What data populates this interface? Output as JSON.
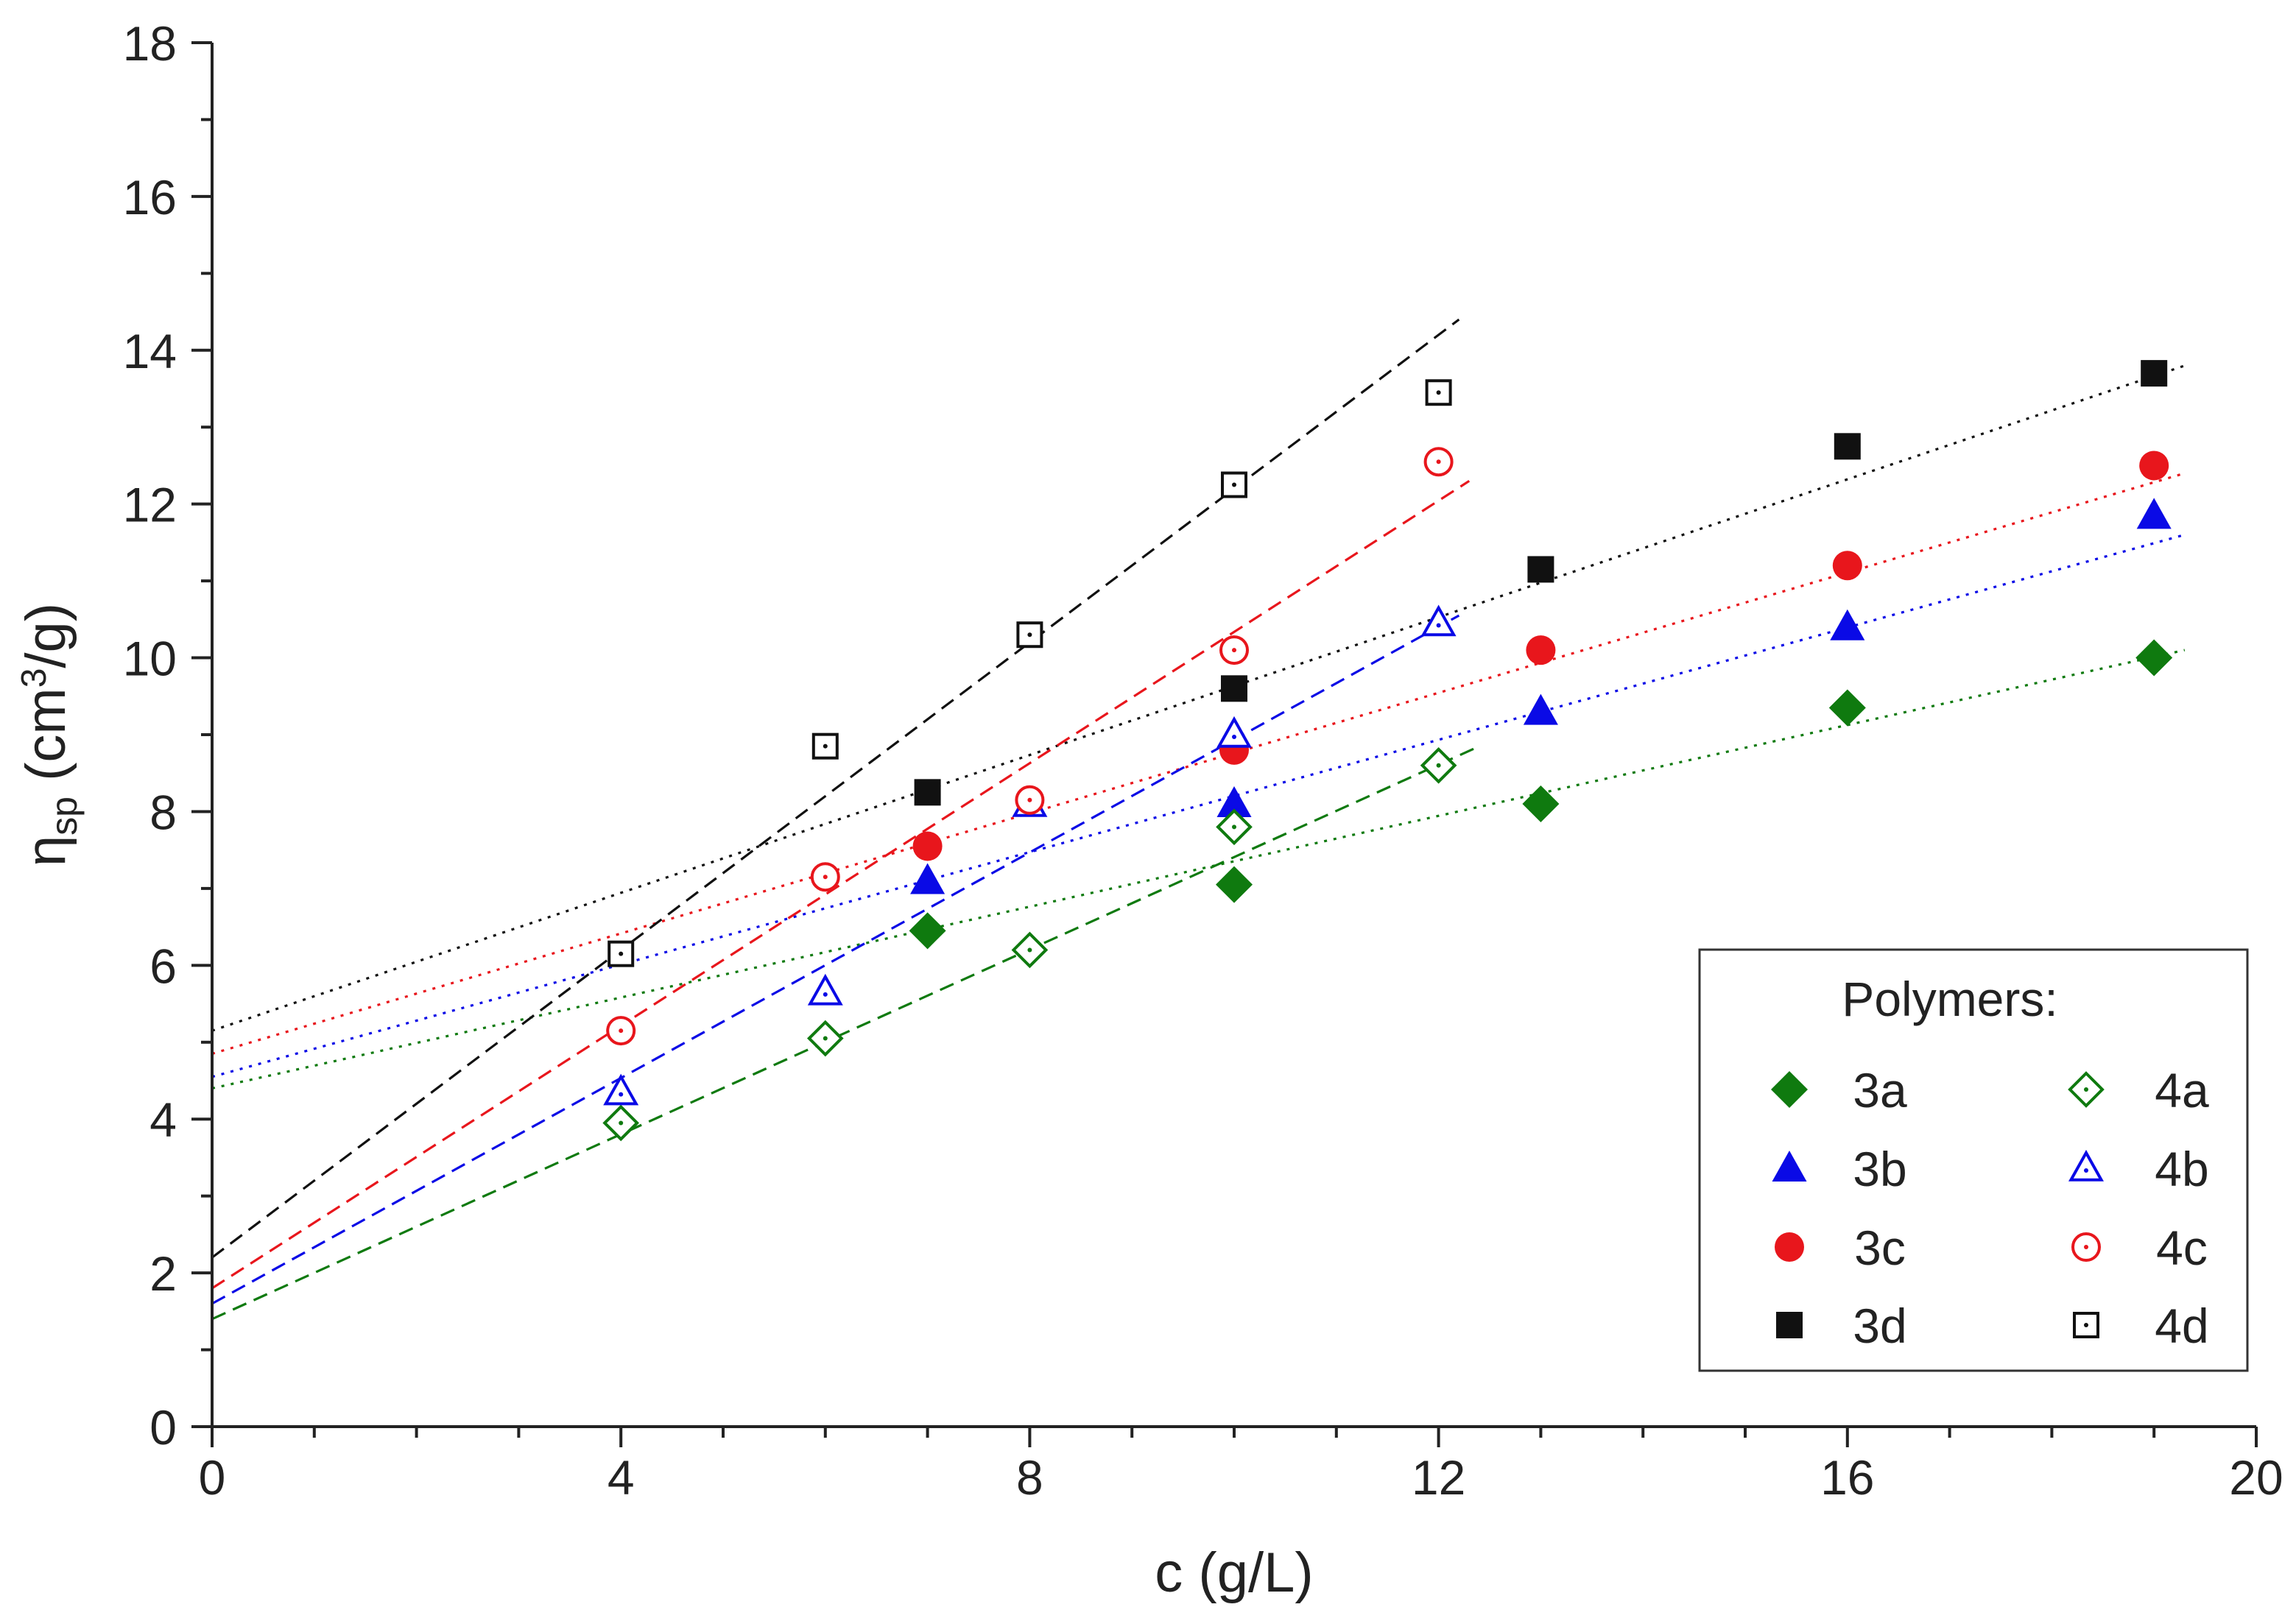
{
  "chart_data": {
    "type": "scatter",
    "x_axis": {
      "label": "c (g/L)",
      "min": 0,
      "max": 20,
      "ticks": [
        0,
        4,
        8,
        12,
        16,
        20
      ],
      "tick_labels": [
        "0",
        "4",
        "8",
        "12",
        "16",
        "20"
      ]
    },
    "y_axis": {
      "label_main": "η",
      "label_sub": "sp",
      "label_open": " (cm",
      "label_sup": "3",
      "label_close": "/g)",
      "min": 0,
      "max": 18,
      "ticks": [
        0,
        2,
        4,
        6,
        8,
        10,
        12,
        14,
        16,
        18
      ],
      "tick_labels": [
        "0",
        "2",
        "4",
        "6",
        "8",
        "10",
        "12",
        "14",
        "16",
        "18"
      ]
    },
    "grid": false,
    "legend": {
      "title": "Polymers:",
      "position": "bottom-right"
    },
    "series": [
      {
        "id": "3a",
        "name": "3a",
        "color": "#0f7a0f",
        "marker": "diamond",
        "filled": true,
        "x": [
          7,
          10,
          13,
          16,
          19
        ],
        "y": [
          6.45,
          7.05,
          8.1,
          9.35,
          10.0
        ],
        "fit": {
          "style": "dotted",
          "x0": 0,
          "y0": 4.4,
          "x1": 19.3,
          "y1": 10.1
        }
      },
      {
        "id": "3b",
        "name": "3b",
        "color": "#0a0ae6",
        "marker": "triangle",
        "filled": true,
        "x": [
          7,
          10,
          13,
          16,
          19
        ],
        "y": [
          7.1,
          8.1,
          9.3,
          10.4,
          11.85
        ],
        "fit": {
          "style": "dotted",
          "x0": 0,
          "y0": 4.55,
          "x1": 19.3,
          "y1": 11.6
        }
      },
      {
        "id": "3c",
        "name": "3c",
        "color": "#e8161c",
        "marker": "circle",
        "filled": true,
        "x": [
          7,
          10,
          13,
          16,
          19
        ],
        "y": [
          7.55,
          8.8,
          10.1,
          11.2,
          12.5
        ],
        "fit": {
          "style": "dotted",
          "x0": 0,
          "y0": 4.85,
          "x1": 19.3,
          "y1": 12.4
        }
      },
      {
        "id": "3d",
        "name": "3d",
        "color": "#111111",
        "marker": "square",
        "filled": true,
        "x": [
          7,
          10,
          13,
          16,
          19
        ],
        "y": [
          8.25,
          9.6,
          11.15,
          12.75,
          13.7
        ],
        "fit": {
          "style": "dotted",
          "x0": 0,
          "y0": 5.15,
          "x1": 19.3,
          "y1": 13.8
        }
      },
      {
        "id": "4a",
        "name": "4a",
        "color": "#0f7a0f",
        "marker": "diamond",
        "filled": false,
        "x": [
          4,
          6,
          8,
          10,
          12
        ],
        "y": [
          3.95,
          5.05,
          6.2,
          7.8,
          8.6
        ],
        "fit": {
          "style": "dashed",
          "x0": 0,
          "y0": 1.4,
          "x1": 12.4,
          "y1": 8.85
        }
      },
      {
        "id": "4b",
        "name": "4b",
        "color": "#0a0ae6",
        "marker": "triangle",
        "filled": false,
        "x": [
          4,
          6,
          8,
          10,
          12
        ],
        "y": [
          4.35,
          5.65,
          8.1,
          9.0,
          10.45
        ],
        "fit": {
          "style": "dashed",
          "x0": 0,
          "y0": 1.6,
          "x1": 12.2,
          "y1": 10.55
        }
      },
      {
        "id": "4c",
        "name": "4c",
        "color": "#e8161c",
        "marker": "circle",
        "filled": false,
        "x": [
          4,
          6,
          8,
          10,
          12
        ],
        "y": [
          5.15,
          7.15,
          8.15,
          10.1,
          12.55
        ],
        "fit": {
          "style": "dashed",
          "x0": 0,
          "y0": 1.8,
          "x1": 12.3,
          "y1": 12.3
        }
      },
      {
        "id": "4d",
        "name": "4d",
        "color": "#111111",
        "marker": "square",
        "filled": false,
        "x": [
          4,
          6,
          8,
          10,
          12
        ],
        "y": [
          6.15,
          8.85,
          10.3,
          12.25,
          13.45
        ],
        "fit": {
          "style": "dashed",
          "x0": 0,
          "y0": 2.2,
          "x1": 12.2,
          "y1": 14.4
        }
      }
    ],
    "legend_layout": [
      [
        "3a",
        "4a"
      ],
      [
        "3b",
        "4b"
      ],
      [
        "3c",
        "4c"
      ],
      [
        "3d",
        "4d"
      ]
    ]
  }
}
